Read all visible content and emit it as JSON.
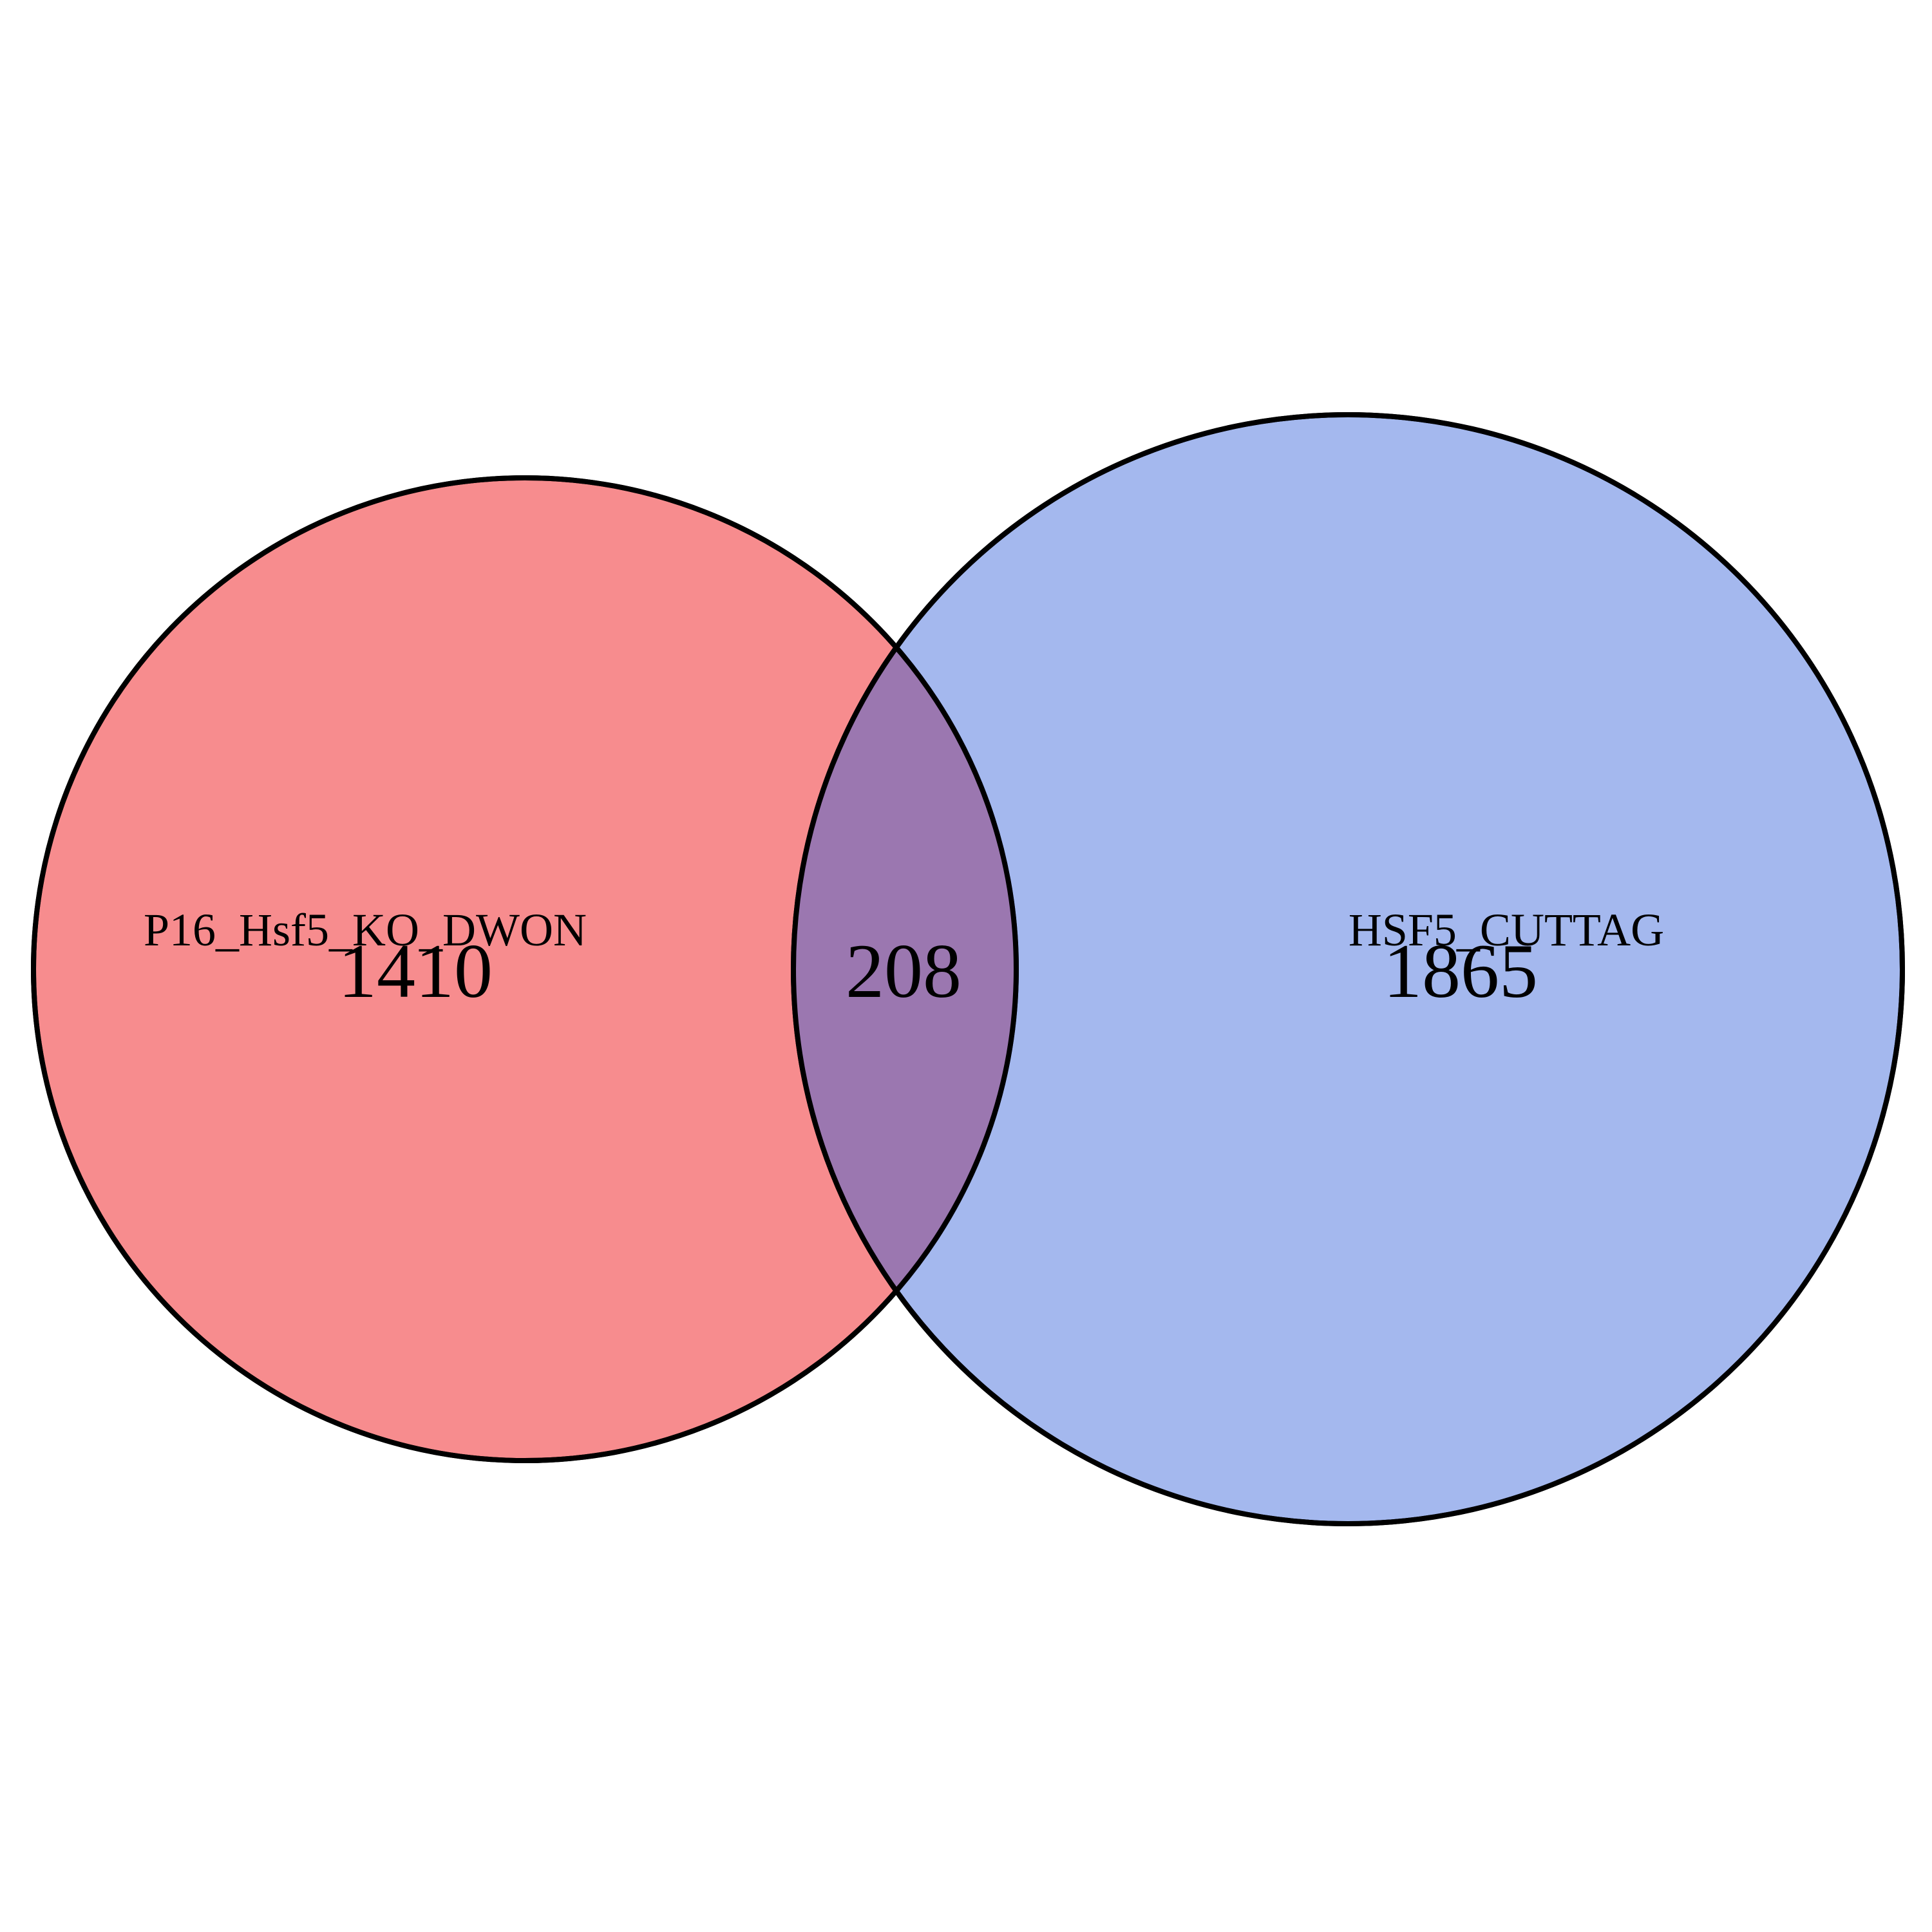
{
  "chart_data": {
    "type": "venn",
    "sets": [
      {
        "name": "P16_Hsf5_KO_DWON",
        "only_count": "1410",
        "color": "#f0191e"
      },
      {
        "name": "HSF5_CUTTAG",
        "only_count": "1865",
        "color": "#4a72dd"
      }
    ],
    "intersection": {
      "sets": [
        "P16_Hsf5_KO_DWON",
        "HSF5_CUTTAG"
      ],
      "count": "208",
      "color": "#9b77b0"
    },
    "fill_opacity": 0.5
  }
}
